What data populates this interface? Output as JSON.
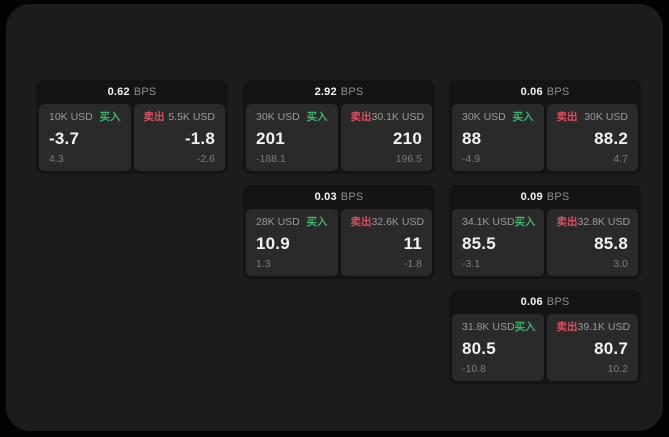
{
  "labels": {
    "bps_suffix": "BPS",
    "buy": "买入",
    "sell": "卖出"
  },
  "colors": {
    "page_outside": "#030303",
    "panel_bg": "#1c1c1d",
    "card_bg": "#141414",
    "tile_bg": "#2a2a2b",
    "text_primary": "#f2f2f3",
    "text_label": "#9b9b9b",
    "text_dim": "#7c7c7c",
    "buy_green": "#3cb46e",
    "sell_red": "#d8505f"
  },
  "cards": [
    {
      "bps": "0.62",
      "buy": {
        "amount": "10K USD",
        "value": "-3.7",
        "sub": "4.3"
      },
      "sell": {
        "amount": "5.5K USD",
        "value": "-1.8",
        "sub": "-2.6"
      }
    },
    {
      "bps": "2.92",
      "buy": {
        "amount": "30K USD",
        "value": "201",
        "sub": "-188.1"
      },
      "sell": {
        "amount": "30.1K USD",
        "value": "210",
        "sub": "196.5"
      }
    },
    {
      "bps": "0.06",
      "buy": {
        "amount": "30K USD",
        "value": "88",
        "sub": "-4.9"
      },
      "sell": {
        "amount": "30K USD",
        "value": "88.2",
        "sub": "4.7"
      }
    },
    {
      "bps": "0.03",
      "buy": {
        "amount": "28K USD",
        "value": "10.9",
        "sub": "1.3"
      },
      "sell": {
        "amount": "32.6K USD",
        "value": "11",
        "sub": "-1.8"
      }
    },
    {
      "bps": "0.09",
      "buy": {
        "amount": "34.1K USD",
        "value": "85.5",
        "sub": "-3.1"
      },
      "sell": {
        "amount": "32.8K USD",
        "value": "85.8",
        "sub": "3.0"
      }
    },
    {
      "bps": "0.06",
      "buy": {
        "amount": "31.8K USD",
        "value": "80.5",
        "sub": "-10.8"
      },
      "sell": {
        "amount": "39.1K USD",
        "value": "80.7",
        "sub": "10.2"
      }
    }
  ]
}
